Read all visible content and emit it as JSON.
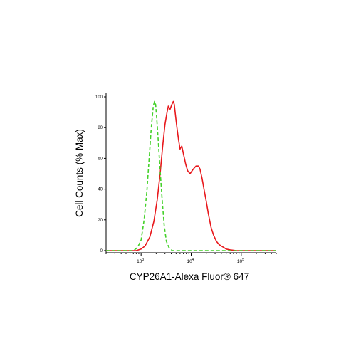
{
  "chart_data": {
    "type": "line",
    "title": "",
    "xlabel": "CYP26A1-Alexa Fluor® 647",
    "ylabel": "Cell Counts (% Max)",
    "x_scale": "log",
    "xlim": [
      200,
      500000
    ],
    "ylim": [
      0,
      100
    ],
    "grid": false,
    "legend": "none",
    "y_ticks": [
      "0",
      "20",
      "40",
      "60",
      "80",
      "100"
    ],
    "x_ticks": [
      {
        "base": "10",
        "exp": "3"
      },
      {
        "base": "10",
        "exp": "4"
      },
      {
        "base": "10",
        "exp": "5"
      }
    ],
    "series": [
      {
        "color": "#e8171b",
        "dash": "solid",
        "x": [
          200,
          300,
          600,
          800,
          1000,
          1200,
          1500,
          1800,
          2100,
          2400,
          2700,
          3000,
          3300,
          3500,
          3800,
          4100,
          4400,
          4600,
          4900,
          5200,
          5600,
          6000,
          6500,
          7000,
          7800,
          8500,
          9500,
          11000,
          12500,
          14000,
          15000,
          16500,
          18000,
          20000,
          22000,
          25000,
          28000,
          32000,
          36000,
          40000,
          45000,
          50000,
          60000,
          80000,
          120000,
          300000,
          500000
        ],
        "y": [
          0,
          0,
          0,
          0,
          1,
          3,
          9,
          19,
          33,
          50,
          68,
          82,
          90,
          94,
          92,
          95,
          97,
          95,
          87,
          80,
          72,
          66,
          68,
          63,
          56,
          52,
          50,
          53,
          55,
          55,
          53,
          47,
          40,
          32,
          24,
          15,
          10,
          6,
          4,
          3,
          2,
          1,
          0.5,
          0,
          0,
          0,
          0
        ]
      },
      {
        "color": "#44d12a",
        "dash": "dashed",
        "x": [
          200,
          500,
          700,
          850,
          1000,
          1150,
          1300,
          1450,
          1600,
          1750,
          1850,
          1950,
          2050,
          2200,
          2400,
          2650,
          2900,
          3200,
          3600,
          4200,
          6000,
          10000,
          50000,
          500000
        ],
        "y": [
          0,
          0,
          0,
          2,
          7,
          20,
          38,
          60,
          80,
          94,
          97,
          95,
          86,
          72,
          52,
          32,
          16,
          6,
          2,
          0,
          0,
          0,
          0,
          0
        ]
      }
    ]
  }
}
